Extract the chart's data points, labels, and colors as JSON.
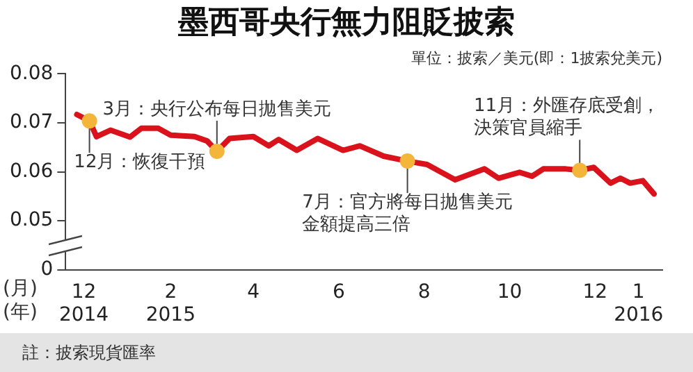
{
  "chart_data": {
    "type": "line",
    "title": "墨西哥央行無力阻貶披索",
    "subtitle": "單位：披索／美元(即：1披索兌美元)",
    "xlabel": "(月)\n(年)",
    "x": [
      "2014-11-26",
      "2014-12-05",
      "2014-12-10",
      "2014-12-20",
      "2015-01-03",
      "2015-01-11",
      "2015-01-23",
      "2015-02-01",
      "2015-02-18",
      "2015-02-27",
      "2015-03-06",
      "2015-03-15",
      "2015-04-01",
      "2015-04-12",
      "2015-04-19",
      "2015-05-02",
      "2015-05-17",
      "2015-06-04",
      "2015-06-16",
      "2015-07-03",
      "2015-07-20",
      "2015-08-03",
      "2015-08-23",
      "2015-09-13",
      "2015-09-23",
      "2015-10-08",
      "2015-10-17",
      "2015-10-25",
      "2015-11-10",
      "2015-11-20",
      "2015-11-30",
      "2015-12-12",
      "2015-12-19",
      "2015-12-26",
      "2016-01-04",
      "2016-01-12"
    ],
    "series": [
      {
        "color": "#d9121b",
        "values": [
          0.0717,
          0.0704,
          0.0672,
          0.0685,
          0.0671,
          0.0689,
          0.0689,
          0.0675,
          0.0672,
          0.0663,
          0.0642,
          0.0668,
          0.0672,
          0.0653,
          0.0666,
          0.0644,
          0.0668,
          0.0644,
          0.0653,
          0.0632,
          0.0622,
          0.0615,
          0.0584,
          0.0606,
          0.0587,
          0.0599,
          0.0591,
          0.0606,
          0.0606,
          0.0603,
          0.0609,
          0.0577,
          0.0587,
          0.0577,
          0.0582,
          0.0555
        ]
      }
    ],
    "xlim": [
      "2014-11-18",
      "2016-01-18"
    ],
    "xticks": [
      {
        "value": "2014-12-01",
        "label": "12\n2014"
      },
      {
        "value": "2015-02-01",
        "label": "2\n2015"
      },
      {
        "value": "2015-04-01",
        "label": "4"
      },
      {
        "value": "2015-06-01",
        "label": "6"
      },
      {
        "value": "2015-08-01",
        "label": "8"
      },
      {
        "value": "2015-10-01",
        "label": "10"
      },
      {
        "value": "2015-12-01",
        "label": "12"
      },
      {
        "value": "2016-01-01",
        "label": "1\n2016"
      }
    ],
    "ylim": [
      0.04,
      0.08
    ],
    "yticks": [
      {
        "value": 0.04,
        "label": "0"
      },
      0.05,
      0.06,
      0.07,
      0.08
    ],
    "grid": false,
    "legend": false,
    "marker": "none",
    "annotations": [
      {
        "text": "12月：恢復干預",
        "x": "2014-12-05",
        "y": 0.0704
      },
      {
        "text": "3月：央行公布每日拋售美元",
        "x": "2015-03-06",
        "y": 0.0642
      },
      {
        "text": "7月：官方將每日拋售美元金額提高三倍",
        "x": "2015-07-20",
        "y": 0.0622
      },
      {
        "text": "11月：外匯存底受創，決策官員縮手",
        "x": "2015-11-20",
        "y": 0.0603
      },
      "註：披索現貨匯率"
    ]
  }
}
